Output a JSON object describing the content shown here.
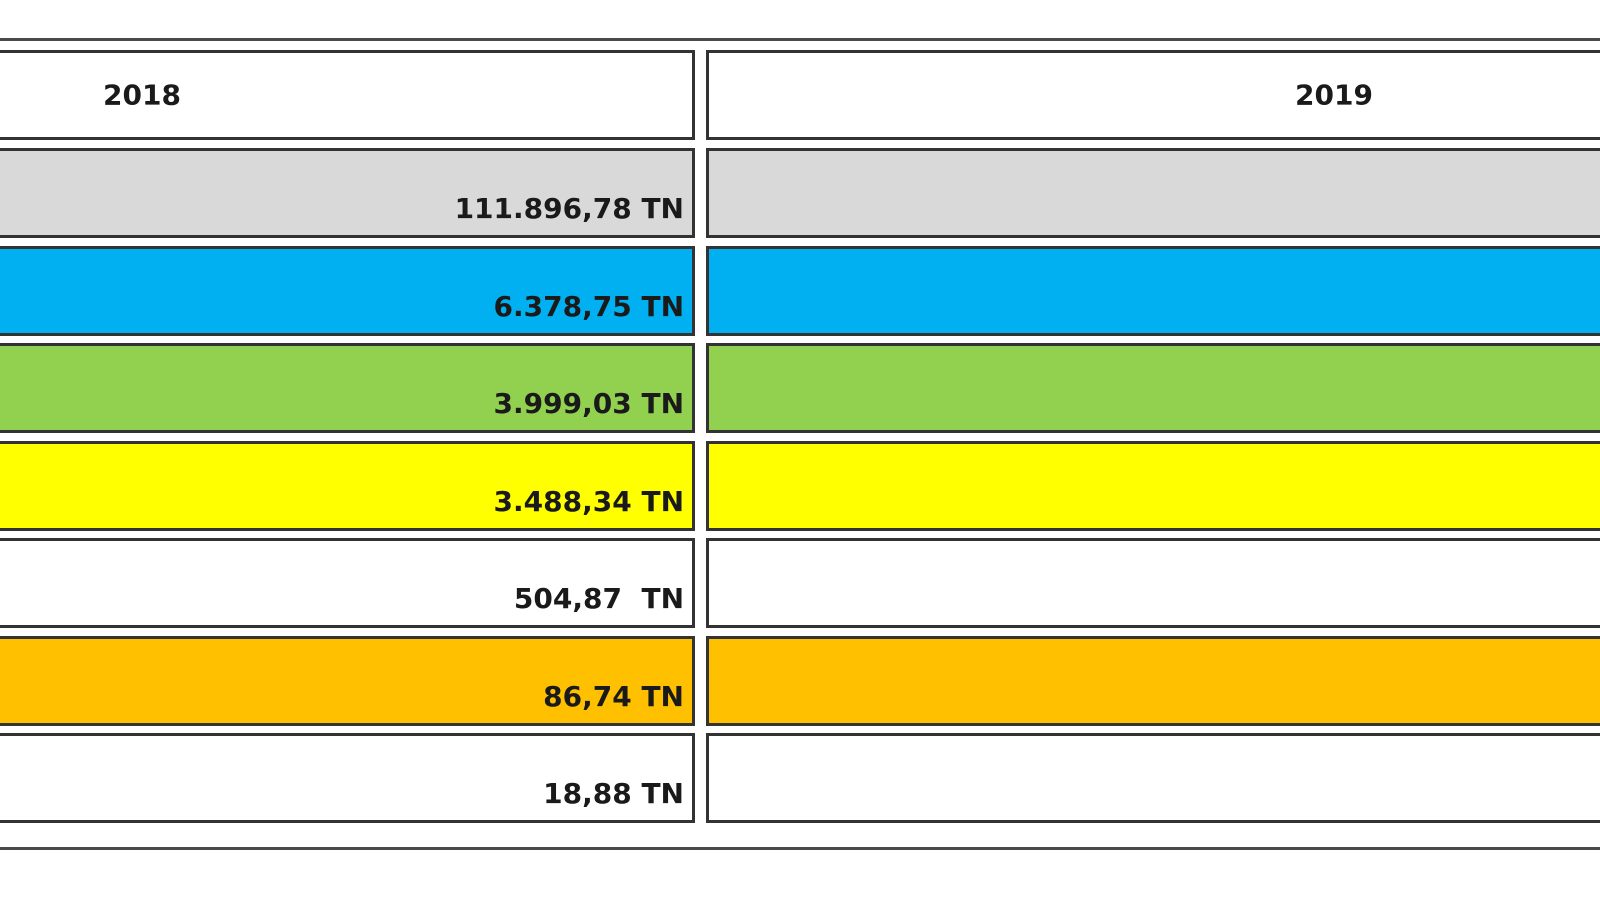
{
  "columns": [
    "2018",
    "2019"
  ],
  "rows": [
    {
      "value_2018": "111.896,78 TN",
      "color": "#d9d9d9"
    },
    {
      "value_2018": "6.378,75 TN",
      "color": "#00b0f0"
    },
    {
      "value_2018": "3.999,03 TN",
      "color": "#92d050"
    },
    {
      "value_2018": "3.488,34 TN",
      "color": "#ffff00"
    },
    {
      "value_2018": "504,87  TN",
      "color": "#ffffff"
    },
    {
      "value_2018": "86,74 TN",
      "color": "#ffc000"
    },
    {
      "value_2018": "18,88 TN",
      "color": "#ffffff"
    }
  ]
}
